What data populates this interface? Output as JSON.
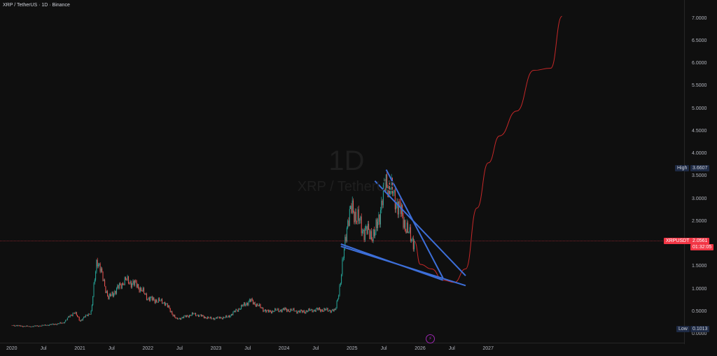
{
  "header": {
    "title": "XRP / TetherUS · 1D · Binance"
  },
  "watermark": {
    "interval": "1D",
    "name": "XRP / TetherUS"
  },
  "colors": {
    "background": "#0f0f0f",
    "up": "#26a69a",
    "down": "#ef5350",
    "projection": "#c62828",
    "trendline": "#3d6fd9",
    "price_line": "#f23645"
  },
  "price_axis": {
    "ticks": [
      "7.0000",
      "6.5000",
      "6.0000",
      "5.5000",
      "5.0000",
      "4.5000",
      "4.0000",
      "3.5000",
      "3.0000",
      "2.5000",
      "2.0000",
      "1.5000",
      "1.0000",
      "0.5000",
      "0.0000"
    ],
    "high": {
      "label": "High",
      "value": "3.6607"
    },
    "low": {
      "label": "Low",
      "value": "0.1013"
    },
    "current": {
      "symbol": "XRPUSDT",
      "price": "2.0561",
      "countdown": "01:32:05"
    }
  },
  "time_axis": {
    "ticks": [
      "2020",
      "Jul",
      "2021",
      "Jul",
      "2022",
      "Jul",
      "2023",
      "Jul",
      "2024",
      "Jul",
      "2025",
      "Jul",
      "2026",
      "Jul",
      "2027"
    ]
  },
  "chart_data": {
    "type": "line",
    "title": "XRP / TetherUS · 1D · Binance",
    "ylim": [
      0,
      7
    ],
    "series": [
      {
        "name": "XRPUSDT",
        "x": [
          "2020-01",
          "2020-04",
          "2020-07",
          "2020-10",
          "2020-12",
          "2021-01",
          "2021-03",
          "2021-04",
          "2021-06",
          "2021-09",
          "2021-11",
          "2022-01",
          "2022-04",
          "2022-06",
          "2022-09",
          "2022-12",
          "2023-03",
          "2023-07",
          "2023-10",
          "2024-01",
          "2024-04",
          "2024-07",
          "2024-10",
          "2024-11",
          "2024-12",
          "2025-01",
          "2025-03",
          "2025-05",
          "2025-07",
          "2025-09",
          "2025-11",
          "2025-12"
        ],
        "y": [
          0.2,
          0.17,
          0.2,
          0.25,
          0.5,
          0.3,
          0.5,
          1.7,
          0.8,
          1.2,
          1.1,
          0.8,
          0.7,
          0.33,
          0.45,
          0.35,
          0.38,
          0.75,
          0.5,
          0.55,
          0.5,
          0.55,
          0.52,
          1.2,
          2.4,
          2.8,
          2.3,
          2.2,
          3.4,
          2.9,
          2.2,
          2.06
        ]
      },
      {
        "name": "projection",
        "x": [
          "2025-12",
          "2026-01",
          "2026-03",
          "2026-05",
          "2026-07",
          "2026-09",
          "2026-11",
          "2027-01",
          "2027-03",
          "2027-06",
          "2027-09",
          "2027-12",
          "2028-02"
        ],
        "y": [
          2.06,
          1.55,
          1.45,
          1.2,
          1.15,
          1.45,
          2.8,
          3.8,
          4.4,
          4.95,
          5.85,
          5.9,
          7.05
        ]
      }
    ],
    "trendlines": [
      {
        "x": [
          "2025-07",
          "2026-05"
        ],
        "y": [
          3.65,
          1.25
        ]
      },
      {
        "x": [
          "2025-05",
          "2026-09"
        ],
        "y": [
          3.4,
          1.3
        ]
      },
      {
        "x": [
          "2024-11",
          "2026-05"
        ],
        "y": [
          2.0,
          1.2
        ]
      },
      {
        "x": [
          "2024-11",
          "2026-09"
        ],
        "y": [
          1.95,
          1.08
        ]
      }
    ]
  }
}
